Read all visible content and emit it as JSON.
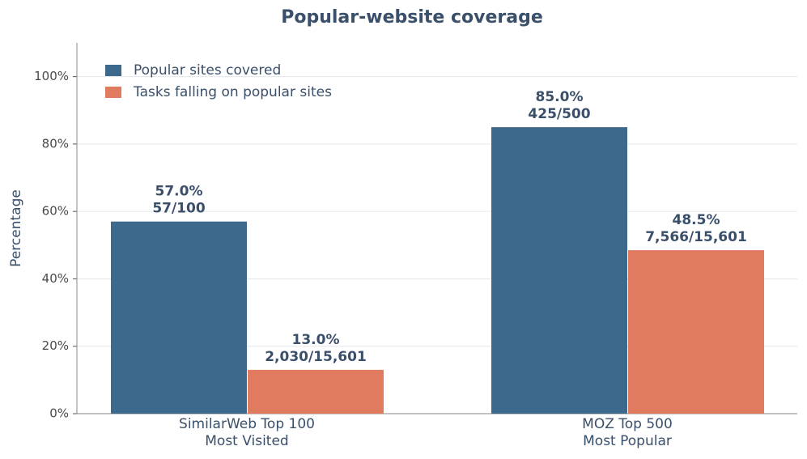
{
  "chart_data": {
    "type": "bar",
    "title": "Popular-website coverage",
    "ylabel": "Percentage",
    "categories": [
      [
        "SimilarWeb Top 100",
        "Most Visited"
      ],
      [
        "MOZ Top 500",
        "Most Popular"
      ]
    ],
    "series": [
      {
        "name": "Popular sites covered",
        "color": "#3d6a8c",
        "values": [
          57.0,
          85.0
        ],
        "value_labels": [
          "57.0%",
          "85.0%"
        ],
        "count_labels": [
          "57/100",
          "425/500"
        ]
      },
      {
        "name": "Tasks falling on popular sites",
        "color": "#e07b5f",
        "values": [
          13.0,
          48.5
        ],
        "value_labels": [
          "13.0%",
          "48.5%"
        ],
        "count_labels": [
          "2,030/15,601",
          "7,566/15,601"
        ]
      }
    ],
    "ylim": [
      0,
      110
    ],
    "yticks": [
      {
        "value": 0,
        "label": "0%"
      },
      {
        "value": 20,
        "label": "20%"
      },
      {
        "value": 40,
        "label": "40%"
      },
      {
        "value": 60,
        "label": "60%"
      },
      {
        "value": 80,
        "label": "80%"
      },
      {
        "value": 100,
        "label": "100%"
      }
    ],
    "grid": true,
    "legend": "upper-left"
  }
}
